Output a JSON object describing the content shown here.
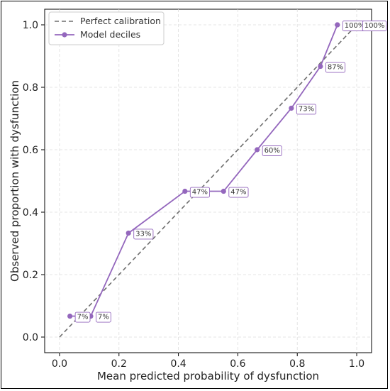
{
  "chart_data": {
    "type": "line",
    "xlabel": "Mean predicted probability of dysfunction",
    "ylabel": "Observed proportion with dysfunction",
    "xlim": [
      -0.05,
      1.05
    ],
    "ylim": [
      -0.05,
      1.05
    ],
    "xticks": [
      0.0,
      0.2,
      0.4,
      0.6,
      0.8,
      1.0
    ],
    "xtick_labels": [
      "0.0",
      "0.2",
      "0.4",
      "0.6",
      "0.8",
      "1.0"
    ],
    "yticks": [
      0.0,
      0.2,
      0.4,
      0.6,
      0.8,
      1.0
    ],
    "ytick_labels": [
      "0.0",
      "0.2",
      "0.4",
      "0.6",
      "0.8",
      "1.0"
    ],
    "grid": true,
    "legend_position": "top-left",
    "series": [
      {
        "name": "Perfect calibration",
        "style": "dashed",
        "color": "#6e6e6e",
        "x": [
          0.0,
          1.0
        ],
        "y": [
          0.0,
          1.0
        ]
      },
      {
        "name": "Model deciles",
        "style": "solid-markers",
        "color": "#9467bd",
        "x": [
          0.035,
          0.105,
          0.232,
          0.422,
          0.552,
          0.665,
          0.78,
          0.878,
          0.935,
          0.935
        ],
        "y": [
          0.067,
          0.067,
          0.333,
          0.467,
          0.467,
          0.6,
          0.733,
          0.867,
          1.0,
          1.0
        ],
        "labels": [
          "7%",
          "7%",
          "33%",
          "47%",
          "47%",
          "60%",
          "73%",
          "87%",
          "100%",
          "100%"
        ]
      }
    ]
  }
}
